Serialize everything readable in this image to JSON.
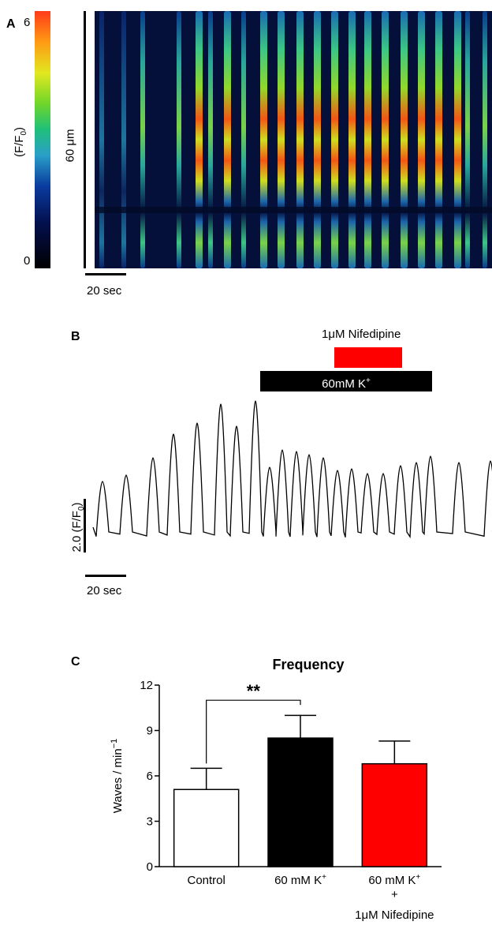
{
  "panel_a": {
    "label": "A",
    "colorbar": {
      "max_label": "6",
      "min_label": "0",
      "unit_label": "(F/F",
      "unit_sub": "0",
      "unit_close": ")"
    },
    "space_scale_label": "60 μm",
    "time_scale_label": "20 sec"
  },
  "panel_b": {
    "label": "B",
    "nifedipine_label": "1μM Nifedipine",
    "k_label": "60mM K",
    "k_sup": "+",
    "amp_scale_label": "2.0  (F/F",
    "amp_scale_sub": "0",
    "amp_scale_close": ")",
    "time_scale_label": "20 sec"
  },
  "chart_data": {
    "type": "bar",
    "panel_label": "C",
    "title": "Frequency",
    "ylabel": "Waves / min",
    "ylabel_sup": "−1",
    "ylim": [
      0,
      12
    ],
    "yticks": [
      "0",
      "3",
      "6",
      "9",
      "12"
    ],
    "categories": [
      "Control",
      "60 mM K",
      "60 mM K"
    ],
    "category_sup": [
      "",
      "+",
      "+"
    ],
    "category_extra": [
      "",
      "",
      "+"
    ],
    "category_extra2": [
      "",
      "",
      "1μM Nifedipine"
    ],
    "values": [
      5.1,
      8.5,
      6.8
    ],
    "errors": [
      1.4,
      1.5,
      1.5
    ],
    "colors": [
      "#ffffff",
      "#000000",
      "#ff0000"
    ],
    "significance": {
      "from": 0,
      "to": 1,
      "label": "**"
    }
  },
  "colors": {
    "red_bar": "#ff0000",
    "black": "#000000"
  }
}
